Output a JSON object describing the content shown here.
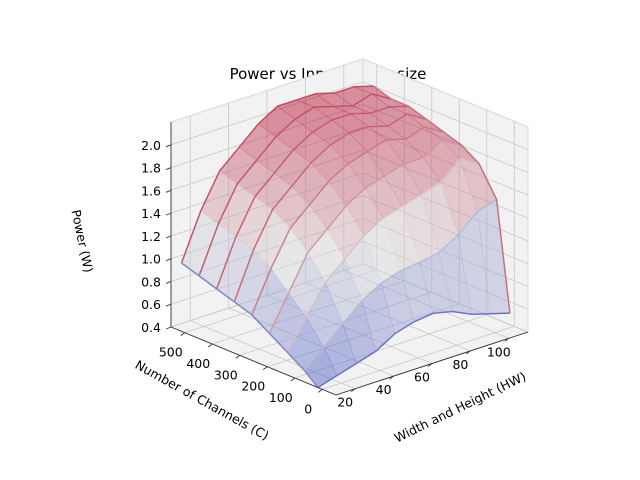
{
  "chart_data": {
    "type": "surface3d",
    "title": "Power vs Input tensor size",
    "xlabel": "Width and Height (HW)",
    "ylabel": "Number of Channels (C)",
    "zlabel": "Power (W)",
    "xlim": [
      10,
      110
    ],
    "ylim": [
      -50,
      550
    ],
    "zlim": [
      0.4,
      2.2
    ],
    "xticks": [
      "20",
      "40",
      "60",
      "80",
      "100"
    ],
    "yticks": [
      "0",
      "100",
      "200",
      "300",
      "400",
      "500"
    ],
    "zticks": [
      "0.4",
      "0.6",
      "0.8",
      "1.0",
      "1.2",
      "1.4",
      "1.6",
      "1.8",
      "2.0"
    ],
    "colormap": "coolwarm",
    "grid": true,
    "x": [
      10,
      20,
      30,
      40,
      50,
      60,
      70,
      80,
      90,
      100,
      110
    ],
    "channels": [
      16,
      64,
      128,
      192,
      256,
      320,
      384,
      448,
      512
    ],
    "power": [
      [
        0.4,
        0.45,
        0.5,
        0.55,
        0.65,
        0.7,
        0.72,
        0.68,
        0.6,
        0.55,
        0.5
      ],
      [
        0.5,
        0.65,
        0.8,
        0.95,
        1.05,
        1.1,
        1.12,
        1.15,
        1.25,
        1.4,
        1.45
      ],
      [
        0.6,
        0.85,
        1.1,
        1.25,
        1.4,
        1.5,
        1.55,
        1.6,
        1.65,
        1.8,
        1.7
      ],
      [
        0.7,
        1.0,
        1.3,
        1.45,
        1.6,
        1.7,
        1.75,
        1.8,
        1.8,
        1.9,
        1.8
      ],
      [
        0.8,
        1.15,
        1.45,
        1.6,
        1.75,
        1.85,
        1.9,
        1.95,
        1.9,
        1.95,
        1.85
      ],
      [
        0.85,
        1.25,
        1.55,
        1.7,
        1.85,
        1.95,
        2.0,
        2.0,
        1.95,
        2.0,
        1.9
      ],
      [
        0.9,
        1.3,
        1.6,
        1.75,
        1.9,
        2.0,
        2.05,
        2.05,
        2.0,
        2.0,
        1.95
      ],
      [
        0.95,
        1.35,
        1.65,
        1.8,
        1.95,
        2.05,
        2.1,
        2.05,
        2.0,
        2.05,
        1.95
      ],
      [
        1.0,
        1.4,
        1.7,
        1.85,
        2.0,
        2.1,
        2.1,
        2.1,
        2.05,
        2.05,
        2.0
      ]
    ],
    "colors": {
      "pane": "#f2f2f2",
      "cold": "#3b4cc0",
      "mid": "#dddddd",
      "warm": "#b40426"
    }
  }
}
